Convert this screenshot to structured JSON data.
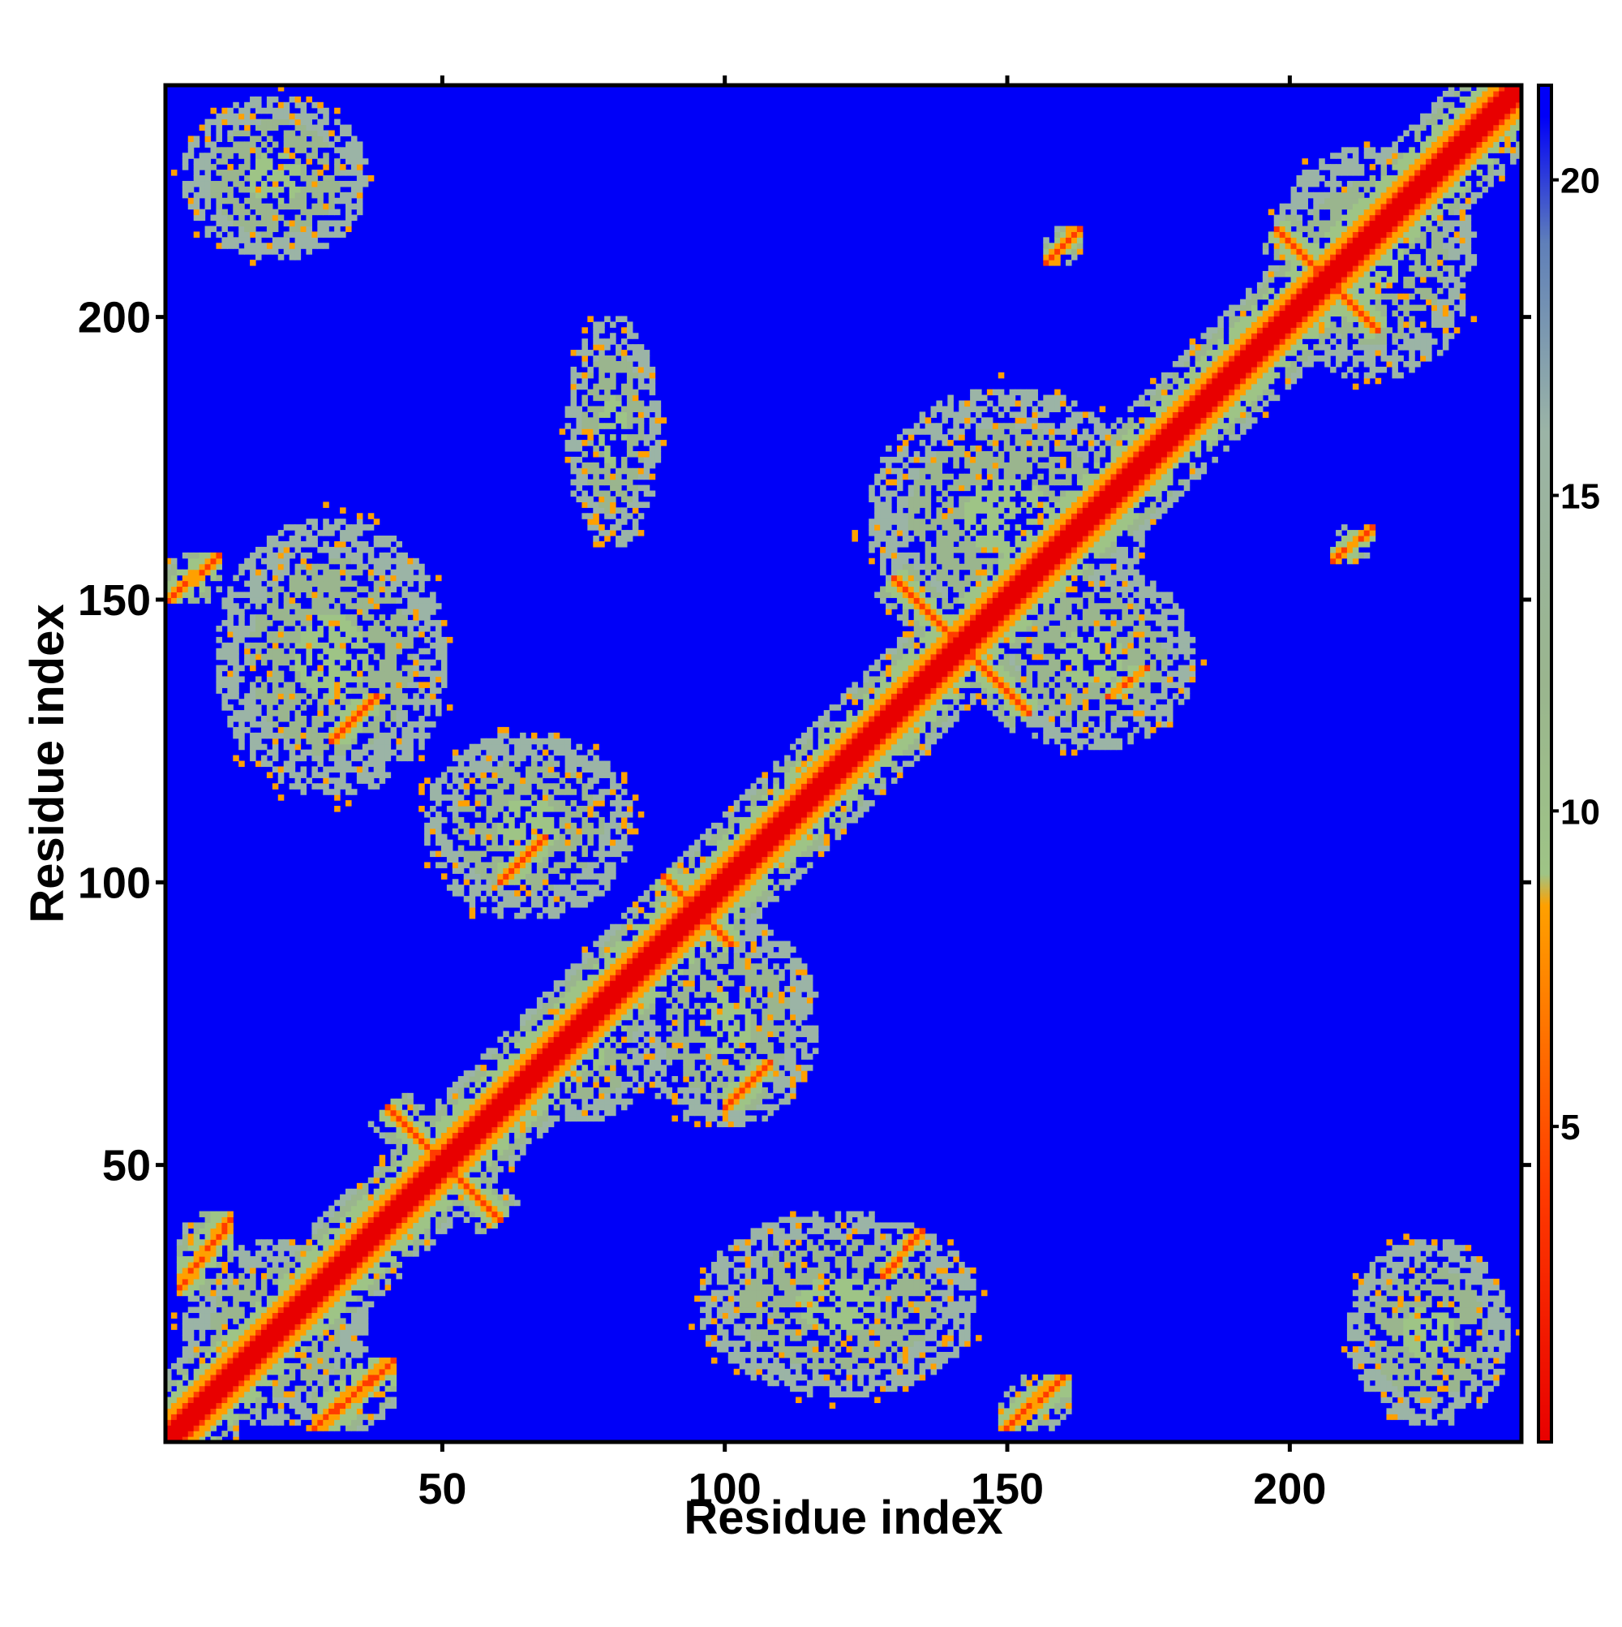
{
  "chart_data": {
    "type": "heatmap",
    "title": "",
    "xlabel": "Residue index",
    "ylabel": "Residue index",
    "n_residues": 241,
    "xlim": [
      1,
      241
    ],
    "ylim": [
      1,
      241
    ],
    "x_ticks": [
      50,
      100,
      150,
      200
    ],
    "y_ticks": [
      50,
      100,
      150,
      200
    ],
    "colorbar": {
      "range": [
        0,
        21.5
      ],
      "ticks": [
        5,
        10,
        15,
        20
      ],
      "colors": [
        {
          "value": 0,
          "color": "#e80000"
        },
        {
          "value": 4,
          "color": "#ff3b00"
        },
        {
          "value": 8.5,
          "color": "#ffa000"
        },
        {
          "value": 9,
          "color": "#9ec486"
        },
        {
          "value": 12,
          "color": "#9ab58e"
        },
        {
          "value": 16,
          "color": "#9bb4a6"
        },
        {
          "value": 19,
          "color": "#5f7fb9"
        },
        {
          "value": 21,
          "color": "#0000f8"
        }
      ]
    },
    "background_color": "#0000f8",
    "contact_diagonals": [
      {
        "x": [
          4,
          238
        ],
        "y": [
          4,
          238
        ]
      }
    ],
    "contact_antidiagonals": [
      {
        "center": [
          50,
          50
        ],
        "half_length": 10
      },
      {
        "center": [
          95,
          95
        ],
        "half_length": 6
      },
      {
        "center": [
          142,
          142
        ],
        "half_length": 12
      },
      {
        "center": [
          207,
          207
        ],
        "half_length": 9
      }
    ],
    "off_diagonal_contacts": [
      {
        "x": [
          157,
          163
        ],
        "y": [
          210,
          216
        ]
      },
      {
        "x": [
          208,
          215
        ],
        "y": [
          157,
          163
        ]
      },
      {
        "x": [
          1,
          10
        ],
        "y": [
          150,
          158
        ]
      },
      {
        "x": [
          28,
          40
        ],
        "y": [
          4,
          14
        ]
      },
      {
        "x": [
          150,
          160
        ],
        "y": [
          3,
          12
        ]
      },
      {
        "x": [
          3,
          12
        ],
        "y": [
          28,
          40
        ]
      },
      {
        "x": [
          60,
          68
        ],
        "y": [
          100,
          108
        ]
      },
      {
        "x": [
          100,
          108
        ],
        "y": [
          60,
          68
        ]
      },
      {
        "x": [
          168,
          175
        ],
        "y": [
          133,
          138
        ]
      },
      {
        "x": [
          128,
          135
        ],
        "y": [
          30,
          38
        ]
      },
      {
        "x": [
          30,
          38
        ],
        "y": [
          125,
          133
        ]
      }
    ],
    "blobs": [
      {
        "center": [
          20,
          20
        ],
        "size": [
          40,
          40
        ]
      },
      {
        "center": [
          20,
          225
        ],
        "size": [
          40,
          35
        ]
      },
      {
        "center": [
          30,
          140
        ],
        "size": [
          50,
          60
        ]
      },
      {
        "center": [
          65,
          110
        ],
        "size": [
          45,
          40
        ]
      },
      {
        "center": [
          100,
          75
        ],
        "size": [
          40,
          45
        ]
      },
      {
        "center": [
          150,
          165
        ],
        "size": [
          60,
          55
        ]
      },
      {
        "center": [
          165,
          140
        ],
        "size": [
          45,
          40
        ]
      },
      {
        "center": [
          120,
          25
        ],
        "size": [
          60,
          40
        ]
      },
      {
        "center": [
          225,
          20
        ],
        "size": [
          35,
          40
        ]
      },
      {
        "center": [
          215,
          210
        ],
        "size": [
          45,
          50
        ]
      },
      {
        "center": [
          75,
          70
        ],
        "size": [
          30,
          30
        ]
      },
      {
        "center": [
          80,
          180
        ],
        "size": [
          20,
          50
        ]
      }
    ]
  }
}
